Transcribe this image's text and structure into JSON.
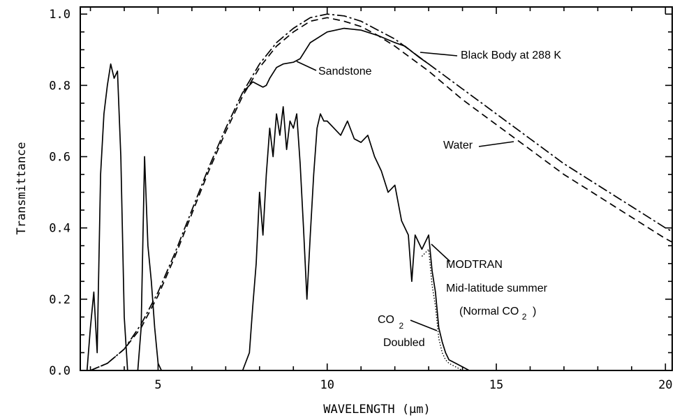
{
  "chart_data": {
    "type": "line",
    "xlabel": "WAVELENGTH  (μm)",
    "ylabel": "Transmittance",
    "xlim": [
      2.7,
      20.2
    ],
    "ylim": [
      0.0,
      1.02
    ],
    "xticks": [
      5,
      10,
      15,
      20
    ],
    "yticks": [
      0.0,
      0.2,
      0.4,
      0.6,
      0.8,
      1.0
    ],
    "ytick_labels": [
      "0.0",
      "0.2",
      "0.4",
      "0.6",
      "0.8",
      "1.0"
    ],
    "grid": false,
    "series": [
      {
        "name": "Black Body at 288 K",
        "style": "dash-dot",
        "x": [
          3,
          3.5,
          4,
          4.5,
          5,
          5.5,
          6,
          6.5,
          7,
          7.5,
          8,
          8.5,
          9,
          9.5,
          10,
          10.5,
          11,
          11.5,
          12,
          12.5,
          13,
          14,
          15,
          16,
          17,
          18,
          19,
          20,
          20.2
        ],
        "y": [
          0.0,
          0.02,
          0.06,
          0.13,
          0.22,
          0.33,
          0.45,
          0.57,
          0.68,
          0.78,
          0.86,
          0.92,
          0.96,
          0.99,
          1.0,
          0.995,
          0.98,
          0.955,
          0.93,
          0.895,
          0.86,
          0.79,
          0.72,
          0.65,
          0.58,
          0.52,
          0.46,
          0.4,
          0.39
        ]
      },
      {
        "name": "Water",
        "style": "dashed",
        "x": [
          3,
          3.5,
          4,
          4.5,
          5,
          5.5,
          6,
          6.5,
          7,
          7.5,
          8,
          8.5,
          9,
          9.5,
          10,
          10.5,
          11,
          11.5,
          12,
          12.5,
          13,
          14,
          15,
          16,
          17,
          18,
          19,
          20,
          20.2
        ],
        "y": [
          0.0,
          0.02,
          0.06,
          0.12,
          0.21,
          0.32,
          0.44,
          0.56,
          0.67,
          0.77,
          0.85,
          0.91,
          0.95,
          0.98,
          0.99,
          0.98,
          0.965,
          0.94,
          0.91,
          0.875,
          0.84,
          0.76,
          0.69,
          0.62,
          0.55,
          0.49,
          0.43,
          0.37,
          0.36
        ]
      },
      {
        "name": "Sandstone",
        "style": "solid",
        "x": [
          7.5,
          7.8,
          8.0,
          8.1,
          8.2,
          8.3,
          8.5,
          8.7,
          9.0,
          9.2,
          9.5,
          10.0,
          10.5,
          11.0,
          11.5,
          12.0,
          12.3,
          12.5,
          12.7,
          13.0
        ],
        "y": [
          0.78,
          0.81,
          0.8,
          0.795,
          0.8,
          0.82,
          0.85,
          0.86,
          0.865,
          0.875,
          0.92,
          0.95,
          0.96,
          0.955,
          0.94,
          0.92,
          0.91,
          0.895,
          0.88,
          0.86
        ]
      },
      {
        "name": "MODTRAN Mid-latitude summer (Normal CO2)",
        "style": "solid",
        "x": [
          2.9,
          3.0,
          3.1,
          3.2,
          3.3,
          3.4,
          3.5,
          3.6,
          3.7,
          3.8,
          3.9,
          4.0,
          4.1,
          4.2,
          4.3,
          4.4,
          4.5,
          4.6,
          4.7,
          4.8,
          4.9,
          5.0,
          5.1,
          7.5,
          7.7,
          7.8,
          7.9,
          8.0,
          8.1,
          8.2,
          8.3,
          8.4,
          8.5,
          8.6,
          8.7,
          8.8,
          8.9,
          9.0,
          9.1,
          9.2,
          9.3,
          9.4,
          9.5,
          9.6,
          9.7,
          9.8,
          9.9,
          10.0,
          10.2,
          10.4,
          10.6,
          10.8,
          11.0,
          11.2,
          11.4,
          11.6,
          11.8,
          12.0,
          12.2,
          12.4,
          12.5,
          12.6,
          12.8,
          13.0,
          13.1,
          13.2,
          13.3,
          13.4,
          13.5,
          13.6,
          13.8,
          14.0,
          14.2
        ],
        "y": [
          0.0,
          0.12,
          0.22,
          0.05,
          0.55,
          0.72,
          0.8,
          0.86,
          0.82,
          0.84,
          0.6,
          0.15,
          0.0,
          0.0,
          0.0,
          0.0,
          0.12,
          0.6,
          0.35,
          0.25,
          0.12,
          0.02,
          0.0,
          0.0,
          0.05,
          0.18,
          0.3,
          0.5,
          0.38,
          0.55,
          0.68,
          0.6,
          0.72,
          0.66,
          0.74,
          0.62,
          0.7,
          0.68,
          0.72,
          0.58,
          0.4,
          0.2,
          0.38,
          0.55,
          0.68,
          0.72,
          0.7,
          0.7,
          0.68,
          0.66,
          0.7,
          0.65,
          0.64,
          0.66,
          0.6,
          0.56,
          0.5,
          0.52,
          0.42,
          0.38,
          0.25,
          0.38,
          0.34,
          0.38,
          0.28,
          0.22,
          0.12,
          0.08,
          0.05,
          0.03,
          0.02,
          0.01,
          0.0
        ]
      },
      {
        "name": "CO2 Doubled",
        "style": "dotted",
        "x": [
          12.8,
          13.0,
          13.1,
          13.2,
          13.3,
          13.4,
          13.5,
          13.6,
          13.8,
          14.0
        ],
        "y": [
          0.32,
          0.34,
          0.24,
          0.18,
          0.09,
          0.05,
          0.03,
          0.02,
          0.01,
          0.0
        ]
      }
    ],
    "annotations": {
      "sandstone": "Sandstone",
      "black_body": "Black Body at 288 K",
      "water": "Water",
      "modtran_1": "MODTRAN",
      "modtran_2": "Mid-latitude summer",
      "modtran_3": "(Normal CO",
      "modtran_3_sub": "2",
      "modtran_3_close": ")",
      "co2_label": "CO",
      "co2_sub": "2",
      "co2_doubled": "Doubled"
    }
  }
}
